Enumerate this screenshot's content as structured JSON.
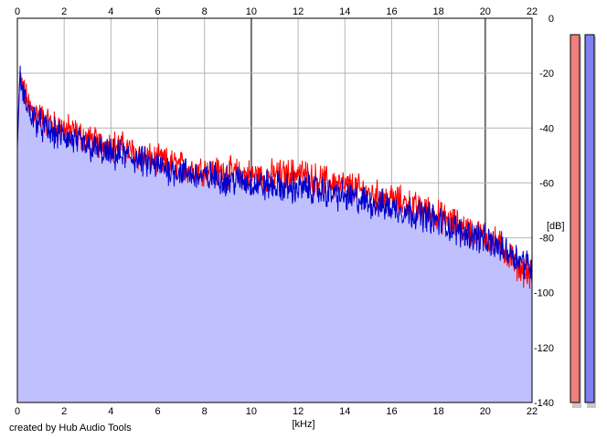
{
  "chart_data": {
    "type": "area",
    "xlabel": "[kHz]",
    "ylabel": "[dB]",
    "xlim": [
      0,
      22
    ],
    "ylim": [
      -140,
      0
    ],
    "x_ticks": [
      0,
      2,
      4,
      6,
      8,
      10,
      12,
      14,
      16,
      18,
      20,
      22
    ],
    "x_tick_labels": [
      "0",
      "2",
      "4",
      "6",
      "8",
      "10",
      "12",
      "14",
      "16",
      "18",
      "20",
      "22"
    ],
    "y_ticks": [
      0,
      -20,
      -40,
      -60,
      -80,
      -100,
      -120,
      -140
    ],
    "y_tick_labels": [
      "0",
      "-20",
      "-40",
      "-60",
      "-80",
      "-100",
      "-120",
      "-140"
    ],
    "grid": true,
    "series": [
      {
        "color": "#ff0000",
        "x": [
          0,
          0.1,
          0.2,
          0.5,
          1,
          1.5,
          2,
          2.5,
          3,
          3.5,
          4,
          4.5,
          5,
          5.5,
          6,
          6.5,
          7,
          7.5,
          8,
          8.5,
          9,
          9.5,
          10,
          10.5,
          11,
          11.5,
          12,
          12.5,
          13,
          13.5,
          14,
          14.5,
          15,
          15.5,
          16,
          16.5,
          17,
          17.5,
          18,
          18.5,
          19,
          19.5,
          20,
          20.5,
          21,
          21.5,
          22
        ],
        "values": [
          -46,
          -22,
          -25,
          -32,
          -36,
          -39,
          -40,
          -42,
          -44,
          -46,
          -46,
          -47,
          -49,
          -51,
          -52,
          -53,
          -54,
          -55,
          -55,
          -56,
          -56,
          -57,
          -57,
          -58,
          -57,
          -57,
          -56,
          -58,
          -59,
          -60,
          -61,
          -62,
          -64,
          -65,
          -66,
          -67,
          -69,
          -70,
          -72,
          -74,
          -76,
          -78,
          -80,
          -82,
          -86,
          -91,
          -94
        ]
      },
      {
        "color": "#0000cc",
        "x": [
          0,
          0.1,
          0.2,
          0.5,
          1,
          1.5,
          2,
          2.5,
          3,
          3.5,
          4,
          4.5,
          5,
          5.5,
          6,
          6.5,
          7,
          7.5,
          8,
          8.5,
          9,
          9.5,
          10,
          10.5,
          11,
          11.5,
          12,
          12.5,
          13,
          13.5,
          14,
          14.5,
          15,
          15.5,
          16,
          16.5,
          17,
          17.5,
          18,
          18.5,
          19,
          19.5,
          20,
          20.5,
          21,
          21.5,
          22
        ],
        "values": [
          -47,
          -22,
          -26,
          -34,
          -39,
          -42,
          -43,
          -45,
          -47,
          -48,
          -50,
          -50,
          -51,
          -53,
          -54,
          -55,
          -56,
          -57,
          -58,
          -58,
          -59,
          -59,
          -60,
          -61,
          -61,
          -62,
          -62,
          -62,
          -63,
          -64,
          -65,
          -66,
          -67,
          -68,
          -69,
          -70,
          -71,
          -72,
          -74,
          -76,
          -78,
          -79,
          -81,
          -83,
          -85,
          -88,
          -90
        ]
      }
    ]
  },
  "meters": [
    {
      "color": "#f08080",
      "level": 0.0
    },
    {
      "color": "#8080f0",
      "level": 0.0
    }
  ],
  "credit": "created by Hub Audio Tools"
}
